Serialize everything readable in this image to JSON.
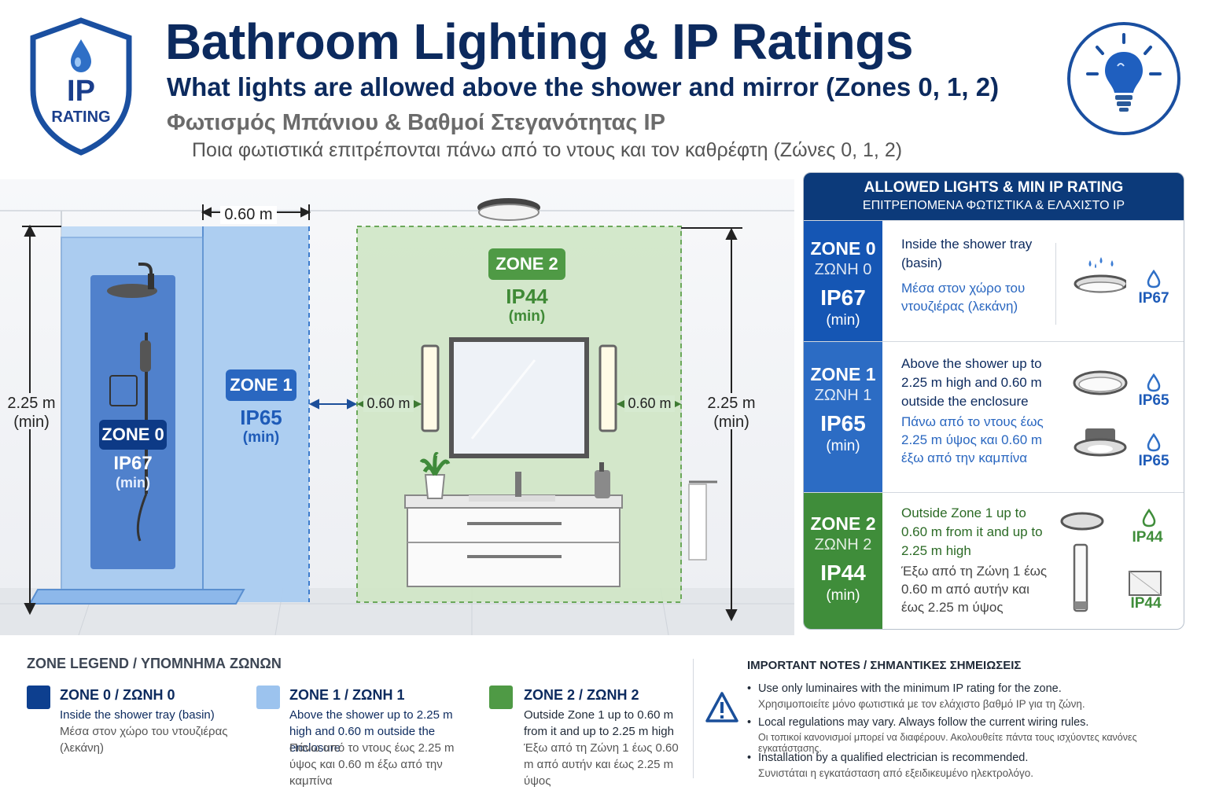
{
  "header": {
    "title": "Bathroom Lighting & IP Ratings",
    "subtitle": "What lights are allowed above the shower and mirror (Zones 0, 1, 2)",
    "title_gr": "Φωτισμός Μπάνιου & Βαθμοί Στεγανότητας IP",
    "subtitle_gr": "Ποια φωτιστικά επιτρέπονται πάνω από το ντους και τον καθρέφτη (Ζώνες 0, 1, 2)"
  },
  "badge": {
    "ip": "IP",
    "rating": "RATING"
  },
  "icons": [
    "shield-drop-icon",
    "lightbulb-icon",
    "ceiling-light-icon",
    "shower-head-icon",
    "plant-icon",
    "soap-dispenser-icon",
    "towel-rail-icon",
    "wall-light-icon",
    "downlight-icon",
    "warning-icon",
    "water-drop-icon"
  ],
  "scene": {
    "zone0": {
      "label": "ZONE 0",
      "ip": "IP67",
      "min": "(min)"
    },
    "zone1": {
      "label": "ZONE 1",
      "ip": "IP65",
      "min": "(min)"
    },
    "zone2": {
      "label": "ZONE 2",
      "ip": "IP44",
      "min": "(min)"
    },
    "dim_top": "0.60 m",
    "dim_left_val": "2.25 m",
    "dim_left_min": "(min)",
    "dim_right_val": "2.25 m",
    "dim_right_min": "(min)",
    "dim_mid_left": "0.60 m",
    "dim_mid_right": "0.60 m"
  },
  "panel": {
    "title": "ALLOWED LIGHTS & MIN IP RATING",
    "title_gr": "ΕΠΙΤΡΕΠΟΜΕΝΑ ΦΩΤΙΣΤΙΚΑ & ΕΛΑΧΙΣΤΟ IP",
    "rows": [
      {
        "zone": "ZONE 0",
        "zone_gr": "ΖΩΝΗ 0",
        "ip": "IP67",
        "min": "(min)",
        "en": "Inside the shower tray (basin)",
        "gr": "Μέσα στον χώρο του ντουζιέρας (λεκάνη)",
        "fixtures": [
          "IP67"
        ]
      },
      {
        "zone": "ZONE 1",
        "zone_gr": "ΖΩΝΗ 1",
        "ip": "IP65",
        "min": "(min)",
        "en": "Above the shower up to 2.25 m high and 0.60 m outside the enclosure",
        "gr": "Πάνω από το ντους έως 2.25 m ύψος και 0.60 m έξω από την καμπίνα",
        "fixtures": [
          "IP65",
          "IP65"
        ]
      },
      {
        "zone": "ZONE 2",
        "zone_gr": "ΖΩΝΗ 2",
        "ip": "IP44",
        "min": "(min)",
        "en": "Outside Zone 1 up to 0.60 m from it and up to 2.25 m high",
        "gr": "Έξω από τη Ζώνη 1 έως 0.60 m από αυτήν και έως 2.25 m ύψος",
        "fixtures": [
          "IP44",
          "IP44"
        ]
      }
    ]
  },
  "legend": {
    "title": "ZONE LEGEND / ΥΠΟΜΝΗΜΑ ΖΩΝΩΝ",
    "items": [
      {
        "title": "ZONE 0 / ΖΩΝΗ 0",
        "en": "Inside the shower tray (basin)",
        "gr": "Μέσα στον χώρο του ντουζιέρας (λεκάνη)",
        "color": "#0d3f8f"
      },
      {
        "title": "ZONE 1 / ΖΩΝΗ 1",
        "en": "Above the shower up to 2.25 m high and 0.60 m outside the enclosure",
        "gr": "Πάνω από το ντους έως 2.25 m ύψος και 0.60 m έξω από την καμπίνα",
        "color": "#9cc3ee"
      },
      {
        "title": "ZONE 2 / ΖΩΝΗ 2",
        "en": "Outside Zone 1 up to 0.60 m from it and up to 2.25 m high",
        "gr": "Έξω από τη Ζώνη 1 έως 0.60 m από αυτήν και έως 2.25 m ύψος",
        "color": "#4f9a45"
      }
    ]
  },
  "notes": {
    "title": "IMPORTANT NOTES / ΣΗΜΑΝΤΙΚΕΣ ΣΗΜΕΙΩΣΕΙΣ",
    "items": [
      {
        "en": "Use only luminaires with the minimum IP rating for the zone.",
        "gr": "Χρησιμοποιείτε μόνο φωτιστικά με τον ελάχιστο βαθμό IP για τη ζώνη."
      },
      {
        "en": "Local regulations may vary. Always follow the current wiring rules.",
        "gr": "Οι τοπικοί κανονισμοί μπορεί να διαφέρουν. Ακολουθείτε πάντα τους ισχύοντες κανόνες εγκατάστασης."
      },
      {
        "en": "Installation by a qualified electrician is recommended.",
        "gr": "Συνιστάται η εγκατάσταση από εξειδικευμένο ηλεκτρολόγο."
      }
    ]
  },
  "colors": {
    "navy": "#0c2a5e",
    "zone0": "#0d3f8f",
    "zone1": "#9cc3ee",
    "zone2": "#4f9a45",
    "panel_head": "#0c3a7a"
  }
}
